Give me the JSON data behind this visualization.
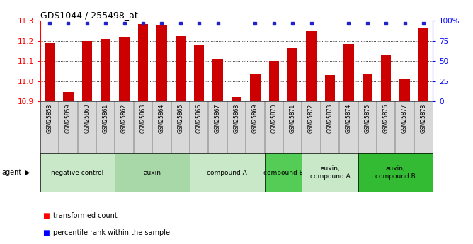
{
  "title": "GDS1044 / 255498_at",
  "samples": [
    "GSM25858",
    "GSM25859",
    "GSM25860",
    "GSM25861",
    "GSM25862",
    "GSM25863",
    "GSM25864",
    "GSM25865",
    "GSM25866",
    "GSM25867",
    "GSM25868",
    "GSM25869",
    "GSM25870",
    "GSM25871",
    "GSM25872",
    "GSM25873",
    "GSM25874",
    "GSM25875",
    "GSM25876",
    "GSM25877",
    "GSM25878"
  ],
  "values": [
    11.19,
    10.948,
    11.2,
    11.21,
    11.22,
    11.285,
    11.275,
    11.225,
    11.178,
    11.112,
    10.922,
    11.038,
    11.102,
    11.165,
    11.248,
    11.032,
    11.186,
    11.038,
    11.128,
    11.008,
    11.265
  ],
  "has_dot": [
    true,
    true,
    true,
    true,
    true,
    true,
    true,
    true,
    true,
    true,
    false,
    true,
    true,
    true,
    true,
    false,
    true,
    true,
    true,
    true,
    true
  ],
  "ymin": 10.9,
  "ymax": 11.3,
  "yticks": [
    10.9,
    11.0,
    11.1,
    11.2,
    11.3
  ],
  "bar_color": "#cc0000",
  "dot_color": "#2222cc",
  "groups": [
    {
      "label": "negative control",
      "start": 0,
      "end": 4,
      "color": "#c8e8c8"
    },
    {
      "label": "auxin",
      "start": 4,
      "end": 8,
      "color": "#a8d8a8"
    },
    {
      "label": "compound A",
      "start": 8,
      "end": 12,
      "color": "#c8e8c8"
    },
    {
      "label": "compound B",
      "start": 12,
      "end": 14,
      "color": "#55cc55"
    },
    {
      "label": "auxin,\ncompound A",
      "start": 14,
      "end": 17,
      "color": "#c8e8c8"
    },
    {
      "label": "auxin,\ncompound B",
      "start": 17,
      "end": 21,
      "color": "#33bb33"
    }
  ],
  "legend_red": "transformed count",
  "legend_blue": "percentile rank within the sample",
  "right_ytick_vals": [
    0,
    25,
    50,
    75,
    100
  ],
  "right_yticklabels": [
    "0",
    "25",
    "50",
    "75",
    "100%"
  ]
}
